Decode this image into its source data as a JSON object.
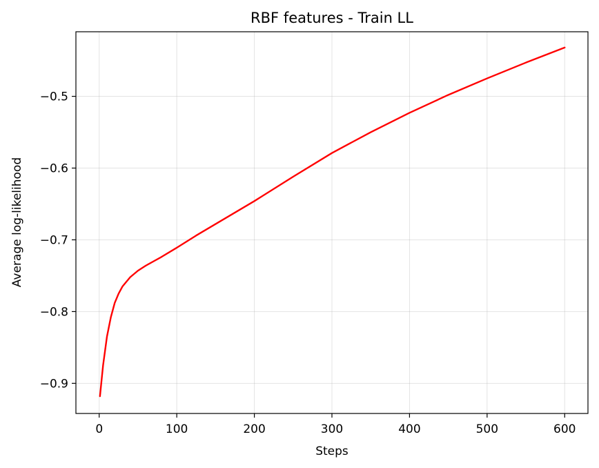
{
  "chart_data": {
    "type": "line",
    "title": "RBF features - Train LL",
    "xlabel": "Steps",
    "ylabel": "Average log-likelihood",
    "xlim": [
      -30,
      630
    ],
    "ylim": [
      -0.942,
      -0.41
    ],
    "xticks": [
      0,
      100,
      200,
      300,
      400,
      500,
      600
    ],
    "xtick_labels": [
      "0",
      "100",
      "200",
      "300",
      "400",
      "500",
      "600"
    ],
    "yticks": [
      -0.9,
      -0.8,
      -0.7,
      -0.6,
      -0.5
    ],
    "ytick_labels": [
      "−0.9",
      "−0.8",
      "−0.7",
      "−0.6",
      "−0.5"
    ],
    "grid": true,
    "series": [
      {
        "color": "#ff0000",
        "x": [
          1,
          5,
          10,
          15,
          20,
          25,
          30,
          40,
          50,
          60,
          70,
          80,
          100,
          125,
          150,
          175,
          200,
          250,
          300,
          350,
          400,
          450,
          500,
          550,
          600
        ],
        "y": [
          -0.918,
          -0.875,
          -0.835,
          -0.808,
          -0.788,
          -0.775,
          -0.765,
          -0.752,
          -0.743,
          -0.736,
          -0.73,
          -0.724,
          -0.711,
          -0.694,
          -0.678,
          -0.662,
          -0.646,
          -0.612,
          -0.579,
          -0.55,
          -0.523,
          -0.498,
          -0.475,
          -0.453,
          -0.432
        ]
      }
    ]
  }
}
